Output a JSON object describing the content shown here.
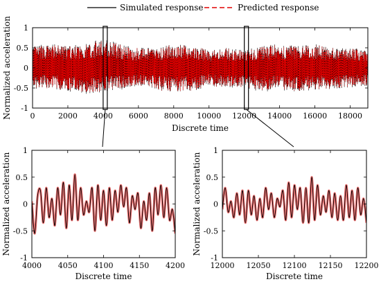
{
  "legend": {
    "placement": "top",
    "entries": [
      {
        "label": "Simulated response",
        "color": "#000000",
        "style": "solid"
      },
      {
        "label": "Predicted response",
        "color": "#e00000",
        "style": "dashed"
      }
    ]
  },
  "chart_data": [
    {
      "type": "line",
      "xlabel": "Discrete time",
      "ylabel": "Normalized acceleration",
      "xlim": [
        0,
        19000
      ],
      "ylim": [
        -1,
        1
      ],
      "xticks": [
        0,
        2000,
        4000,
        6000,
        8000,
        10000,
        12000,
        14000,
        16000,
        18000
      ],
      "yticks": [
        -1,
        -0.5,
        0,
        0.5,
        1
      ],
      "ytick_labels": [
        "-1",
        "-0.5",
        "0",
        "0.5",
        "1"
      ],
      "grid": false,
      "amplitude_envelope": {
        "x": [
          0,
          1000,
          2000,
          3000,
          4000,
          5000,
          6000,
          7000,
          8000,
          9000,
          10000,
          11000,
          12000,
          13000,
          14000,
          15000,
          16000,
          17000,
          18000,
          19000
        ],
        "upper": [
          0.55,
          0.6,
          0.55,
          0.6,
          0.75,
          0.6,
          0.5,
          0.5,
          0.6,
          0.55,
          0.45,
          0.5,
          0.45,
          0.55,
          0.6,
          0.55,
          0.6,
          0.5,
          0.5,
          0.45
        ],
        "lower": [
          -0.55,
          -0.5,
          -0.6,
          -0.65,
          -0.6,
          -0.55,
          -0.45,
          -0.55,
          -0.6,
          -0.6,
          -0.45,
          -0.5,
          -0.5,
          -0.6,
          -0.55,
          -0.6,
          -0.55,
          -0.55,
          -0.5,
          -0.45
        ]
      },
      "zoom_boxes": [
        [
          4000,
          4200
        ],
        [
          12000,
          12200
        ]
      ],
      "series": [
        {
          "name": "Simulated response",
          "color": "#000000",
          "style": "solid"
        },
        {
          "name": "Predicted response",
          "color": "#e00000",
          "style": "dashed"
        }
      ]
    },
    {
      "type": "line",
      "xlabel": "Discrete time",
      "ylabel": "Normalized acceleration",
      "xlim": [
        4000,
        4200
      ],
      "ylim": [
        -1,
        1
      ],
      "xticks": [
        4000,
        4050,
        4100,
        4150,
        4200
      ],
      "yticks": [
        -1,
        -0.5,
        0,
        0.5,
        1
      ],
      "ytick_labels": [
        "-1",
        "-0.5",
        "0",
        "0.5",
        "1"
      ],
      "grid": false,
      "series": [
        {
          "name": "Simulated response",
          "x": [
            4000,
            4004,
            4008,
            4012,
            4016,
            4020,
            4024,
            4028,
            4032,
            4036,
            4040,
            4044,
            4048,
            4052,
            4056,
            4060,
            4064,
            4068,
            4072,
            4076,
            4080,
            4084,
            4088,
            4092,
            4096,
            4100,
            4104,
            4108,
            4112,
            4116,
            4120,
            4124,
            4128,
            4132,
            4136,
            4140,
            4144,
            4148,
            4152,
            4156,
            4160,
            4164,
            4168,
            4172,
            4176,
            4180,
            4184,
            4188,
            4192,
            4196,
            4200
          ],
          "y": [
            0.05,
            -0.55,
            0.15,
            0.25,
            -0.35,
            0.3,
            -0.25,
            0.1,
            -0.4,
            0.3,
            -0.2,
            0.4,
            -0.45,
            0.35,
            -0.3,
            0.55,
            -0.3,
            0.3,
            -0.2,
            0.05,
            -0.15,
            0.3,
            -0.5,
            0.35,
            -0.3,
            0.25,
            -0.4,
            0.3,
            -0.3,
            0.25,
            -0.15,
            0.35,
            -0.05,
            0.3,
            -0.35,
            0.15,
            -0.1,
            0.2,
            -0.45,
            0.05,
            -0.3,
            0.2,
            -0.5,
            0.3,
            -0.2,
            0.35,
            -0.25,
            0.3,
            -0.3,
            -0.1,
            -0.55
          ]
        },
        {
          "name": "Predicted response",
          "x": [
            4000,
            4004,
            4008,
            4012,
            4016,
            4020,
            4024,
            4028,
            4032,
            4036,
            4040,
            4044,
            4048,
            4052,
            4056,
            4060,
            4064,
            4068,
            4072,
            4076,
            4080,
            4084,
            4088,
            4092,
            4096,
            4100,
            4104,
            4108,
            4112,
            4116,
            4120,
            4124,
            4128,
            4132,
            4136,
            4140,
            4144,
            4148,
            4152,
            4156,
            4160,
            4164,
            4168,
            4172,
            4176,
            4180,
            4184,
            4188,
            4192,
            4196,
            4200
          ],
          "y": [
            0.05,
            -0.55,
            0.15,
            0.25,
            -0.35,
            0.3,
            -0.25,
            0.1,
            -0.4,
            0.3,
            -0.2,
            0.4,
            -0.45,
            0.35,
            -0.3,
            0.55,
            -0.3,
            0.3,
            -0.2,
            0.05,
            -0.15,
            0.3,
            -0.5,
            0.35,
            -0.3,
            0.25,
            -0.4,
            0.3,
            -0.3,
            0.25,
            -0.15,
            0.35,
            -0.05,
            0.3,
            -0.35,
            0.15,
            -0.1,
            0.2,
            -0.45,
            0.05,
            -0.3,
            0.2,
            -0.5,
            0.3,
            -0.2,
            0.35,
            -0.25,
            0.3,
            -0.3,
            -0.1,
            -0.55
          ]
        }
      ]
    },
    {
      "type": "line",
      "xlabel": "Discrete time",
      "ylabel": "Normalized acceleration",
      "xlim": [
        12000,
        12200
      ],
      "ylim": [
        -1,
        1
      ],
      "xticks": [
        12000,
        12050,
        12100,
        12150,
        12200
      ],
      "yticks": [
        -1,
        -0.5,
        0,
        0.5,
        1
      ],
      "ytick_labels": [
        "-1",
        "-0.5",
        "0",
        "0.5",
        "1"
      ],
      "grid": false,
      "series": [
        {
          "name": "Simulated response",
          "x": [
            12000,
            12004,
            12008,
            12012,
            12016,
            12020,
            12024,
            12028,
            12032,
            12036,
            12040,
            12044,
            12048,
            12052,
            12056,
            12060,
            12064,
            12068,
            12072,
            12076,
            12080,
            12084,
            12088,
            12092,
            12096,
            12100,
            12104,
            12108,
            12112,
            12116,
            12120,
            12124,
            12128,
            12132,
            12136,
            12140,
            12144,
            12148,
            12152,
            12156,
            12160,
            12164,
            12168,
            12172,
            12176,
            12180,
            12184,
            12188,
            12192,
            12196,
            12200
          ],
          "y": [
            -0.1,
            0.3,
            -0.15,
            0.05,
            -0.25,
            0.2,
            -0.2,
            0.25,
            -0.35,
            0.25,
            -0.2,
            0.15,
            -0.3,
            0.1,
            -0.25,
            0.3,
            -0.1,
            0.2,
            -0.25,
            0.1,
            -0.05,
            0.25,
            -0.3,
            0.4,
            -0.25,
            0.35,
            -0.1,
            0.3,
            -0.35,
            0.3,
            -0.35,
            0.5,
            -0.3,
            0.35,
            -0.2,
            0.15,
            -0.15,
            0.25,
            -0.25,
            0.2,
            -0.3,
            0.15,
            -0.3,
            0.35,
            -0.25,
            0.25,
            -0.3,
            0.3,
            -0.2,
            0.1,
            -0.35
          ]
        },
        {
          "name": "Predicted response",
          "x": [
            12000,
            12004,
            12008,
            12012,
            12016,
            12020,
            12024,
            12028,
            12032,
            12036,
            12040,
            12044,
            12048,
            12052,
            12056,
            12060,
            12064,
            12068,
            12072,
            12076,
            12080,
            12084,
            12088,
            12092,
            12096,
            12100,
            12104,
            12108,
            12112,
            12116,
            12120,
            12124,
            12128,
            12132,
            12136,
            12140,
            12144,
            12148,
            12152,
            12156,
            12160,
            12164,
            12168,
            12172,
            12176,
            12180,
            12184,
            12188,
            12192,
            12196,
            12200
          ],
          "y": [
            -0.1,
            0.3,
            -0.15,
            0.05,
            -0.25,
            0.2,
            -0.2,
            0.25,
            -0.35,
            0.25,
            -0.2,
            0.15,
            -0.3,
            0.1,
            -0.25,
            0.3,
            -0.1,
            0.2,
            -0.25,
            0.1,
            -0.05,
            0.25,
            -0.3,
            0.4,
            -0.25,
            0.35,
            -0.1,
            0.3,
            -0.35,
            0.3,
            -0.35,
            0.5,
            -0.3,
            0.35,
            -0.2,
            0.15,
            -0.15,
            0.25,
            -0.25,
            0.2,
            -0.3,
            0.15,
            -0.3,
            0.35,
            -0.25,
            0.25,
            -0.3,
            0.3,
            -0.2,
            0.1,
            -0.35
          ]
        }
      ]
    }
  ]
}
